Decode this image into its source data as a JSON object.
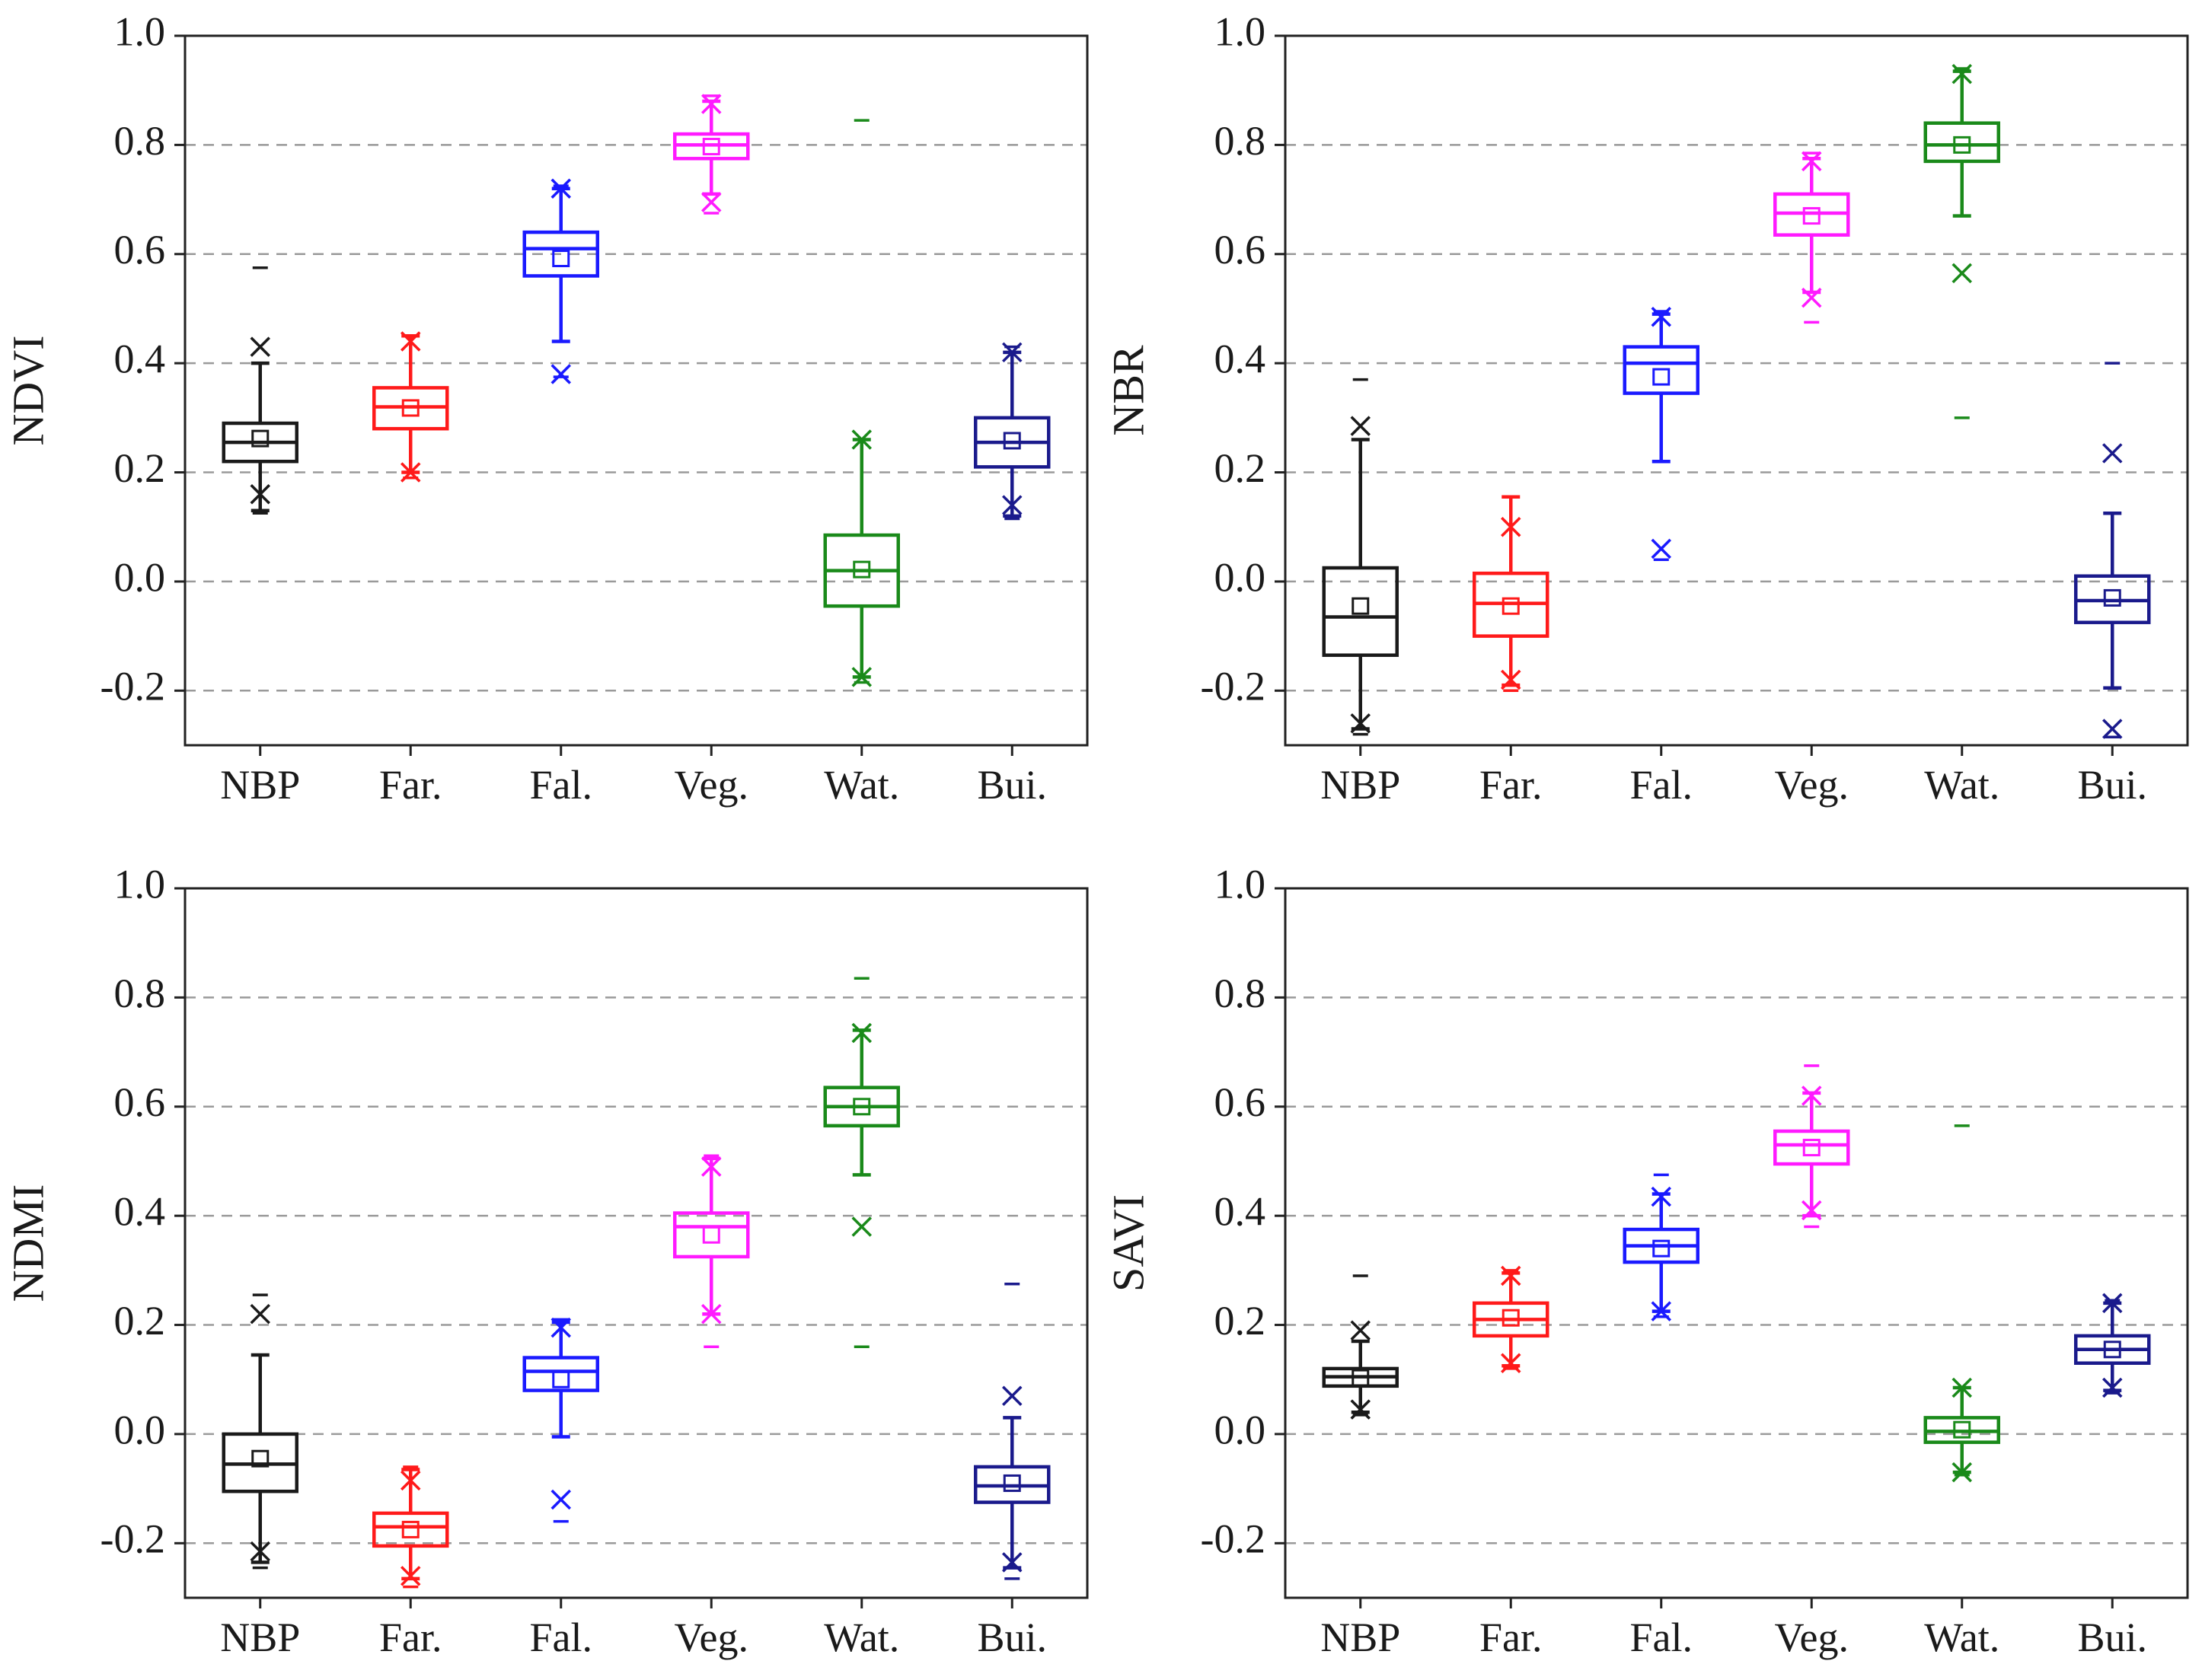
{
  "chart_data": [
    {
      "type": "box",
      "panel": "top-left",
      "ylabel": "NDVI",
      "ylim": [
        -0.3,
        1.0
      ],
      "yticks": [
        -0.2,
        0.0,
        0.2,
        0.4,
        0.6,
        0.8,
        1.0
      ],
      "ytick_labels": [
        "-0.2",
        "0.0",
        "0.2",
        "0.4",
        "0.6",
        "0.8",
        "1.0"
      ],
      "grid_values": [
        -0.2,
        0.0,
        0.2,
        0.4,
        0.6,
        0.8
      ],
      "categories": [
        "NBP",
        "Far.",
        "Fal.",
        "Veg.",
        "Wat.",
        "Bui."
      ],
      "colors": [
        "#1a1a1a",
        "#ff1a1a",
        "#1a1aff",
        "#ff1aff",
        "#1a8a1a",
        "#1a1a8c"
      ],
      "boxes": [
        {
          "q1": 0.22,
          "median": 0.255,
          "q3": 0.29,
          "mean": 0.262,
          "whisker_low": 0.13,
          "whisker_high": 0.4,
          "x_high": 0.43,
          "x_low": 0.16,
          "max": 0.575,
          "min": 0.125
        },
        {
          "q1": 0.28,
          "median": 0.32,
          "q3": 0.355,
          "mean": 0.318,
          "whisker_low": 0.2,
          "whisker_high": 0.45,
          "x_high": 0.44,
          "x_low": 0.2,
          "max": 0.45,
          "min": 0.19
        },
        {
          "q1": 0.56,
          "median": 0.61,
          "q3": 0.64,
          "mean": 0.592,
          "whisker_low": 0.44,
          "whisker_high": 0.72,
          "x_high": 0.72,
          "x_low": 0.38,
          "max": 0.725,
          "min": 0.375
        },
        {
          "q1": 0.775,
          "median": 0.8,
          "q3": 0.82,
          "mean": 0.797,
          "whisker_low": 0.71,
          "whisker_high": 0.88,
          "x_high": 0.875,
          "x_low": 0.695,
          "max": 0.89,
          "min": 0.675
        },
        {
          "q1": -0.045,
          "median": 0.02,
          "q3": 0.085,
          "mean": 0.022,
          "whisker_low": -0.175,
          "whisker_high": 0.26,
          "x_high": 0.26,
          "x_low": -0.175,
          "max": 0.845,
          "min": -0.185
        },
        {
          "q1": 0.21,
          "median": 0.255,
          "q3": 0.3,
          "mean": 0.258,
          "whisker_low": 0.12,
          "whisker_high": 0.42,
          "x_high": 0.42,
          "x_low": 0.14,
          "max": 0.43,
          "min": 0.115
        }
      ]
    },
    {
      "type": "box",
      "panel": "top-right",
      "ylabel": "NBR",
      "ylim": [
        -0.3,
        1.0
      ],
      "yticks": [
        -0.2,
        0.0,
        0.2,
        0.4,
        0.6,
        0.8,
        1.0
      ],
      "ytick_labels": [
        "-0.2",
        "0.0",
        "0.2",
        "0.4",
        "0.6",
        "0.8",
        "1.0"
      ],
      "grid_values": [
        -0.2,
        0.0,
        0.2,
        0.4,
        0.6,
        0.8
      ],
      "categories": [
        "NBP",
        "Far.",
        "Fal.",
        "Veg.",
        "Wat.",
        "Bui."
      ],
      "colors": [
        "#1a1a1a",
        "#ff1a1a",
        "#1a1aff",
        "#ff1aff",
        "#1a8a1a",
        "#1a1a8c"
      ],
      "boxes": [
        {
          "q1": -0.135,
          "median": -0.065,
          "q3": 0.025,
          "mean": -0.045,
          "whisker_low": -0.27,
          "whisker_high": 0.26,
          "x_high": 0.285,
          "x_low": -0.26,
          "max": 0.37,
          "min": -0.28
        },
        {
          "q1": -0.1,
          "median": -0.04,
          "q3": 0.015,
          "mean": -0.045,
          "whisker_low": -0.19,
          "whisker_high": 0.155,
          "x_high": 0.1,
          "x_low": -0.18,
          "max": 0.155,
          "min": -0.2
        },
        {
          "q1": 0.345,
          "median": 0.4,
          "q3": 0.43,
          "mean": 0.375,
          "whisker_low": 0.22,
          "whisker_high": 0.49,
          "x_high": 0.485,
          "x_low": 0.06,
          "max": 0.495,
          "min": 0.04
        },
        {
          "q1": 0.635,
          "median": 0.675,
          "q3": 0.71,
          "mean": 0.67,
          "whisker_low": 0.53,
          "whisker_high": 0.775,
          "x_high": 0.77,
          "x_low": 0.52,
          "max": 0.785,
          "min": 0.475
        },
        {
          "q1": 0.77,
          "median": 0.8,
          "q3": 0.84,
          "mean": 0.8,
          "whisker_low": 0.67,
          "whisker_high": 0.935,
          "x_high": 0.93,
          "x_low": 0.565,
          "max": 0.94,
          "min": 0.3
        },
        {
          "q1": -0.075,
          "median": -0.035,
          "q3": 0.01,
          "mean": -0.03,
          "whisker_low": -0.195,
          "whisker_high": 0.125,
          "x_high": 0.235,
          "x_low": -0.27,
          "max": 0.4,
          "min": -0.285
        }
      ]
    },
    {
      "type": "box",
      "panel": "bottom-left",
      "ylabel": "NDMI",
      "ylim": [
        -0.3,
        1.0
      ],
      "yticks": [
        -0.2,
        0.0,
        0.2,
        0.4,
        0.6,
        0.8,
        1.0
      ],
      "ytick_labels": [
        "-0.2",
        "0.0",
        "0.2",
        "0.4",
        "0.6",
        "0.8",
        "1.0"
      ],
      "grid_values": [
        -0.2,
        0.0,
        0.2,
        0.4,
        0.6,
        0.8
      ],
      "categories": [
        "NBP",
        "Far.",
        "Fal.",
        "Veg.",
        "Wat.",
        "Bui."
      ],
      "colors": [
        "#1a1a1a",
        "#ff1a1a",
        "#1a1aff",
        "#ff1aff",
        "#1a8a1a",
        "#1a1a8c"
      ],
      "boxes": [
        {
          "q1": -0.105,
          "median": -0.055,
          "q3": 0.0,
          "mean": -0.045,
          "whisker_low": -0.235,
          "whisker_high": 0.145,
          "x_high": 0.22,
          "x_low": -0.215,
          "max": 0.255,
          "min": -0.245
        },
        {
          "q1": -0.205,
          "median": -0.17,
          "q3": -0.145,
          "mean": -0.175,
          "whisker_low": -0.265,
          "whisker_high": -0.065,
          "x_high": -0.085,
          "x_low": -0.26,
          "max": -0.06,
          "min": -0.28
        },
        {
          "q1": 0.08,
          "median": 0.115,
          "q3": 0.14,
          "mean": 0.1,
          "whisker_low": -0.005,
          "whisker_high": 0.205,
          "x_high": 0.195,
          "x_low": -0.12,
          "max": 0.21,
          "min": -0.16
        },
        {
          "q1": 0.325,
          "median": 0.38,
          "q3": 0.405,
          "mean": 0.365,
          "whisker_low": 0.22,
          "whisker_high": 0.505,
          "x_high": 0.49,
          "x_low": 0.22,
          "max": 0.51,
          "min": 0.16
        },
        {
          "q1": 0.565,
          "median": 0.6,
          "q3": 0.635,
          "mean": 0.6,
          "whisker_low": 0.475,
          "whisker_high": 0.74,
          "x_high": 0.735,
          "x_low": 0.38,
          "max": 0.835,
          "min": 0.16
        },
        {
          "q1": -0.125,
          "median": -0.095,
          "q3": -0.06,
          "mean": -0.09,
          "whisker_low": -0.245,
          "whisker_high": 0.03,
          "x_high": 0.07,
          "x_low": -0.235,
          "max": 0.275,
          "min": -0.265
        }
      ]
    },
    {
      "type": "box",
      "panel": "bottom-right",
      "ylabel": "SAVI",
      "ylim": [
        -0.3,
        1.0
      ],
      "yticks": [
        -0.2,
        0.0,
        0.2,
        0.4,
        0.6,
        0.8,
        1.0
      ],
      "ytick_labels": [
        "-0.2",
        "0.0",
        "0.2",
        "0.4",
        "0.6",
        "0.8",
        "1.0"
      ],
      "grid_values": [
        -0.2,
        0.0,
        0.2,
        0.4,
        0.6,
        0.8
      ],
      "categories": [
        "NBP",
        "Far.",
        "Fal.",
        "Veg.",
        "Wat.",
        "Bui."
      ],
      "colors": [
        "#1a1a1a",
        "#ff1a1a",
        "#1a1aff",
        "#ff1aff",
        "#1a8a1a",
        "#1a1a8c"
      ],
      "boxes": [
        {
          "q1": 0.088,
          "median": 0.105,
          "q3": 0.12,
          "mean": 0.103,
          "whisker_low": 0.04,
          "whisker_high": 0.17,
          "x_high": 0.19,
          "x_low": 0.045,
          "max": 0.29,
          "min": 0.035
        },
        {
          "q1": 0.18,
          "median": 0.21,
          "q3": 0.24,
          "mean": 0.213,
          "whisker_low": 0.125,
          "whisker_high": 0.295,
          "x_high": 0.29,
          "x_low": 0.13,
          "max": 0.3,
          "min": 0.12
        },
        {
          "q1": 0.315,
          "median": 0.345,
          "q3": 0.375,
          "mean": 0.34,
          "whisker_low": 0.225,
          "whisker_high": 0.44,
          "x_high": 0.435,
          "x_low": 0.225,
          "max": 0.475,
          "min": 0.215
        },
        {
          "q1": 0.495,
          "median": 0.53,
          "q3": 0.555,
          "mean": 0.525,
          "whisker_low": 0.4,
          "whisker_high": 0.625,
          "x_high": 0.62,
          "x_low": 0.41,
          "max": 0.675,
          "min": 0.38
        },
        {
          "q1": -0.015,
          "median": 0.005,
          "q3": 0.03,
          "mean": 0.008,
          "whisker_low": -0.07,
          "whisker_high": 0.085,
          "x_high": 0.085,
          "x_low": -0.07,
          "max": 0.565,
          "min": -0.075
        },
        {
          "q1": 0.13,
          "median": 0.155,
          "q3": 0.18,
          "mean": 0.155,
          "whisker_low": 0.08,
          "whisker_high": 0.24,
          "x_high": 0.24,
          "x_low": 0.085,
          "max": 0.245,
          "min": 0.075
        }
      ]
    }
  ]
}
